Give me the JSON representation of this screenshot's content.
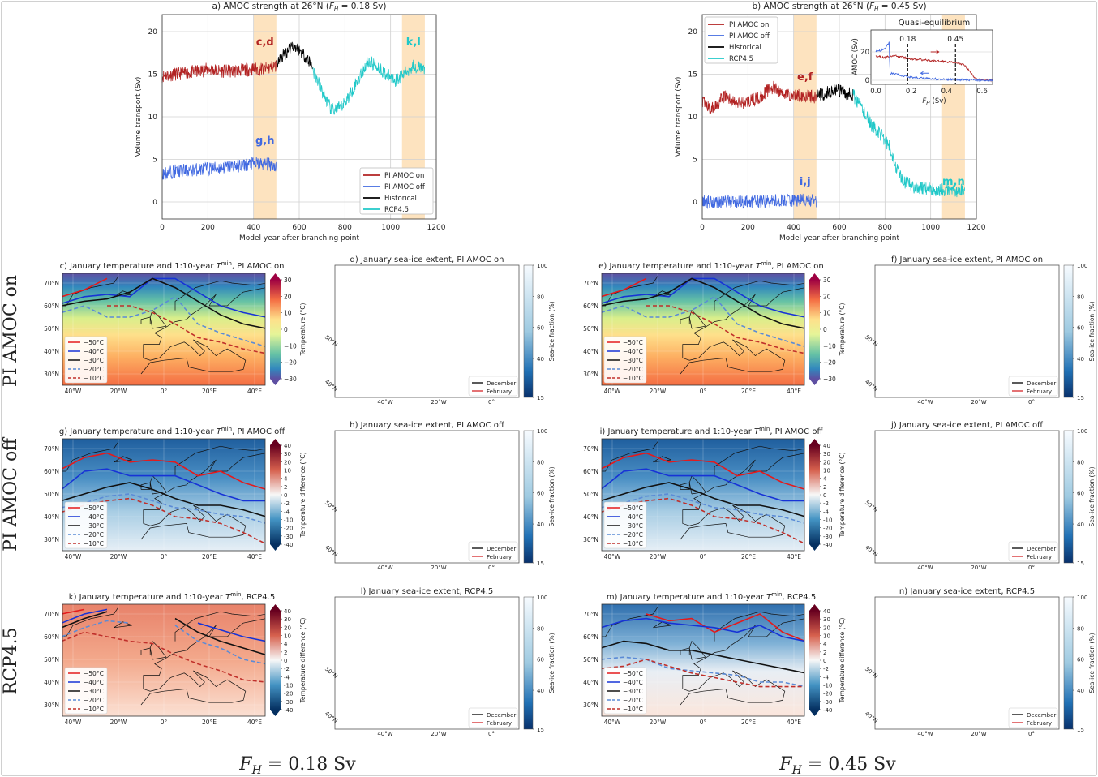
{
  "row_labels": [
    "PI AMOC on",
    "PI AMOC off",
    "RCP4.5"
  ],
  "column_labels": [
    {
      "symbol": "F",
      "sub": "H",
      "rest": " = 0.18 Sv"
    },
    {
      "symbol": "F",
      "sub": "H",
      "rest": " = 0.45 Sv"
    }
  ],
  "chart_data": [
    {
      "type": "line",
      "title_pre": "a) AMOC strength at 26°N (",
      "title_symbol": "F",
      "title_sub": "H",
      "title_post": " = 0.18 Sv)",
      "xlabel": "Model year after branching point",
      "ylabel": "Volume transport (Sv)",
      "xlim": [
        0,
        1200
      ],
      "ylim": [
        -2,
        22
      ],
      "xticks": [
        0,
        200,
        400,
        600,
        800,
        1000,
        1200
      ],
      "yticks": [
        0,
        5,
        10,
        15,
        20
      ],
      "grid": true,
      "legend_position": "lower-right",
      "shaded_periods": [
        [
          400,
          500
        ],
        [
          1050,
          1150
        ]
      ],
      "shade_color": "#fde3bf",
      "series": [
        {
          "name": "PI AMOC on",
          "color": "#b22222",
          "x": [
            0,
            50,
            100,
            150,
            200,
            250,
            300,
            350,
            400,
            450,
            500
          ],
          "y": [
            14.8,
            15.0,
            15.1,
            15.3,
            15.6,
            15.4,
            15.3,
            15.5,
            15.6,
            15.6,
            16.0
          ]
        },
        {
          "name": "PI AMOC off",
          "color": "#4169e1",
          "x": [
            0,
            50,
            100,
            150,
            200,
            250,
            300,
            350,
            400,
            450,
            500
          ],
          "y": [
            3.3,
            3.6,
            3.7,
            3.8,
            3.9,
            4.0,
            4.2,
            4.3,
            4.5,
            4.5,
            4.2
          ]
        },
        {
          "name": "Historical",
          "color": "#000000",
          "x": [
            500,
            540,
            570,
            600,
            630,
            660
          ],
          "y": [
            16.2,
            17.5,
            18.5,
            17.8,
            17.0,
            16.0
          ]
        },
        {
          "name": "RCP4.5",
          "color": "#20c8c8",
          "x": [
            660,
            700,
            740,
            780,
            820,
            860,
            900,
            940,
            980,
            1020,
            1060,
            1100,
            1150
          ],
          "y": [
            15.5,
            13.0,
            10.8,
            11.0,
            12.5,
            14.5,
            16.5,
            16.0,
            15.0,
            14.3,
            15.0,
            16.0,
            15.5
          ]
        }
      ],
      "annotations": [
        {
          "text": "c,d",
          "x": 450,
          "y": 18.4,
          "color": "#b22222"
        },
        {
          "text": "g,h",
          "x": 450,
          "y": 6.8,
          "color": "#4169e1"
        },
        {
          "text": "k,l",
          "x": 1100,
          "y": 18.4,
          "color": "#20c8c8"
        }
      ]
    },
    {
      "type": "line",
      "title_pre": "b) AMOC strength at 26°N (",
      "title_symbol": "F",
      "title_sub": "H",
      "title_post": " = 0.45 Sv)",
      "xlabel": "Model year after branching point",
      "ylabel": "Volume transport (Sv)",
      "xlim": [
        0,
        1200
      ],
      "ylim": [
        -2,
        22
      ],
      "xticks": [
        0,
        200,
        400,
        600,
        800,
        1000,
        1200
      ],
      "yticks": [
        0,
        5,
        10,
        15,
        20
      ],
      "grid": true,
      "legend_position": "upper-left",
      "shaded_periods": [
        [
          400,
          500
        ],
        [
          1050,
          1150
        ]
      ],
      "shade_color": "#fde3bf",
      "series": [
        {
          "name": "PI AMOC on",
          "color": "#b22222",
          "x": [
            0,
            40,
            100,
            150,
            200,
            250,
            300,
            350,
            400,
            450,
            500
          ],
          "y": [
            11.8,
            10.8,
            12.5,
            11.5,
            11.8,
            12.2,
            13.5,
            12.8,
            12.5,
            12.5,
            12.3
          ]
        },
        {
          "name": "PI AMOC off",
          "color": "#4169e1",
          "x": [
            0,
            100,
            200,
            300,
            400,
            500
          ],
          "y": [
            0.0,
            0.1,
            0.0,
            0.1,
            0.2,
            0.1
          ]
        },
        {
          "name": "Historical",
          "color": "#000000",
          "x": [
            500,
            540,
            580,
            620,
            660
          ],
          "y": [
            12.5,
            12.8,
            13.2,
            12.8,
            12.6
          ]
        },
        {
          "name": "RCP4.5",
          "color": "#20c8c8",
          "x": [
            660,
            700,
            740,
            780,
            820,
            850,
            880,
            920,
            1000,
            1150
          ],
          "y": [
            12.5,
            11.0,
            9.0,
            8.0,
            6.5,
            4.0,
            2.5,
            1.8,
            1.5,
            1.3
          ]
        }
      ],
      "annotations": [
        {
          "text": "e,f",
          "x": 450,
          "y": 14.3,
          "color": "#b22222"
        },
        {
          "text": "i,j",
          "x": 450,
          "y": 2.0,
          "color": "#4169e1"
        },
        {
          "text": "m,n",
          "x": 1100,
          "y": 2.0,
          "color": "#20c8c8"
        }
      ],
      "inset": {
        "type": "line",
        "title": "Quasi-equilibrium",
        "xlabel_symbol": "F",
        "xlabel_sub": "H",
        "xlabel_post": " (Sv)",
        "ylabel": "AMOC (Sv)",
        "xlim": [
          0,
          0.66
        ],
        "ylim": [
          -2,
          32
        ],
        "xticks": [
          "0.0",
          "0.2",
          "0.4",
          "0.6"
        ],
        "yticks": [
          "0",
          "20"
        ],
        "markers": [
          {
            "label": "0.18",
            "x": 0.18
          },
          {
            "label": "0.45",
            "x": 0.45
          }
        ],
        "series": [
          {
            "color": "#b22222",
            "direction": "increasing",
            "x": [
              0,
              0.05,
              0.1,
              0.2,
              0.3,
              0.4,
              0.45,
              0.5,
              0.55,
              0.58,
              0.66
            ],
            "y": [
              17,
              16,
              17.5,
              15,
              14,
              13,
              12.5,
              11,
              3,
              0.5,
              0
            ]
          },
          {
            "color": "#4169e1",
            "direction": "decreasing",
            "x": [
              0.66,
              0.4,
              0.2,
              0.1,
              0.08,
              0.075,
              0.05,
              0
            ],
            "y": [
              0,
              0.5,
              2,
              4.5,
              5,
              27,
              22,
              20
            ]
          }
        ]
      }
    }
  ],
  "temperature_maps": [
    {
      "id": "c",
      "title_pre": "c) January temperature and 1:10-year ",
      "title_post": ", PI AMOC on",
      "colorbar_label": "Temperature (°C)",
      "colorbar_ticks": [
        "30",
        "20",
        "10",
        "0",
        "−10",
        "−20",
        "−30"
      ],
      "scheme": "absolute"
    },
    {
      "id": "e",
      "title_pre": "e) January temperature and 1:10-year ",
      "title_post": ", PI AMOC on",
      "colorbar_label": "Temperature (°C)",
      "colorbar_ticks": [
        "30",
        "20",
        "10",
        "0",
        "−10",
        "−20",
        "−30"
      ],
      "scheme": "absolute"
    },
    {
      "id": "g",
      "title_pre": "g) January temperature and 1:10-year ",
      "title_post": ", PI AMOC off",
      "colorbar_label": "Temperature difference (°C)",
      "colorbar_ticks": [
        "40",
        "30",
        "20",
        "10",
        "4",
        "2",
        "0",
        "-2",
        "-4",
        "-10",
        "-20",
        "-30",
        "-40"
      ],
      "scheme": "cold"
    },
    {
      "id": "i",
      "title_pre": "i) January temperature and 1:10-year ",
      "title_post": ", PI AMOC off",
      "colorbar_label": "Temperature difference (°C)",
      "colorbar_ticks": [
        "40",
        "30",
        "20",
        "10",
        "4",
        "2",
        "0",
        "-2",
        "-4",
        "-10",
        "-20",
        "-30",
        "-40"
      ],
      "scheme": "cold"
    },
    {
      "id": "k",
      "title_pre": "k) January temperature and 1:10-year ",
      "title_post": ", RCP4.5",
      "colorbar_label": "Temperature difference (°C)",
      "colorbar_ticks": [
        "40",
        "30",
        "20",
        "10",
        "4",
        "2",
        "0",
        "-2",
        "-4",
        "-10",
        "-20",
        "-30",
        "-40"
      ],
      "scheme": "warm"
    },
    {
      "id": "m",
      "title_pre": "m) January temperature and 1:10-year ",
      "title_post": ", RCP4.5",
      "colorbar_label": "Temperature difference (°C)",
      "colorbar_ticks": [
        "40",
        "30",
        "20",
        "10",
        "4",
        "2",
        "0",
        "-2",
        "-4",
        "-10",
        "-20",
        "-30",
        "-40"
      ],
      "scheme": "mixed"
    }
  ],
  "tmin_symbol": "T",
  "tmin_sup": "min",
  "temperature_legend": [
    {
      "label": "−50°C",
      "color": "#e41a1c",
      "dashed": false
    },
    {
      "label": "−40°C",
      "color": "#1733d6",
      "dashed": false
    },
    {
      "label": "−30°C",
      "color": "#111111",
      "dashed": false
    },
    {
      "label": "−20°C",
      "color": "#5b8bd6",
      "dashed": true
    },
    {
      "label": "−10°C",
      "color": "#c0302b",
      "dashed": true
    }
  ],
  "lat_labels": [
    "70°N",
    "60°N",
    "50°N",
    "40°N",
    "30°N"
  ],
  "lon_labels": [
    "40°W",
    "20°W",
    "0°",
    "20°E",
    "40°E"
  ],
  "seaice_maps": [
    {
      "id": "d",
      "title": "d) January sea-ice extent, PI AMOC on",
      "state": "on"
    },
    {
      "id": "f",
      "title": "f) January sea-ice extent, PI AMOC on",
      "state": "on"
    },
    {
      "id": "h",
      "title": "h) January sea-ice extent, PI AMOC off",
      "state": "off"
    },
    {
      "id": "j",
      "title": "j) January sea-ice extent, PI AMOC off",
      "state": "off"
    },
    {
      "id": "l",
      "title": "l) January sea-ice extent, RCP4.5",
      "state": "rcp_low"
    },
    {
      "id": "n",
      "title": "n) January sea-ice extent, RCP4.5",
      "state": "rcp_high"
    }
  ],
  "seaice_colorbar_label": "Sea-ice fraction (%)",
  "seaice_colorbar_ticks": [
    100,
    80,
    60,
    40,
    15
  ],
  "seaice_legend": [
    {
      "label": "December",
      "color": "#000000"
    },
    {
      "label": "February",
      "color": "#d62728"
    }
  ],
  "seaice_lon_labels": [
    "40°W",
    "20°W",
    "0°"
  ],
  "seaice_lat_labels": [
    "50°N",
    "40°N"
  ]
}
